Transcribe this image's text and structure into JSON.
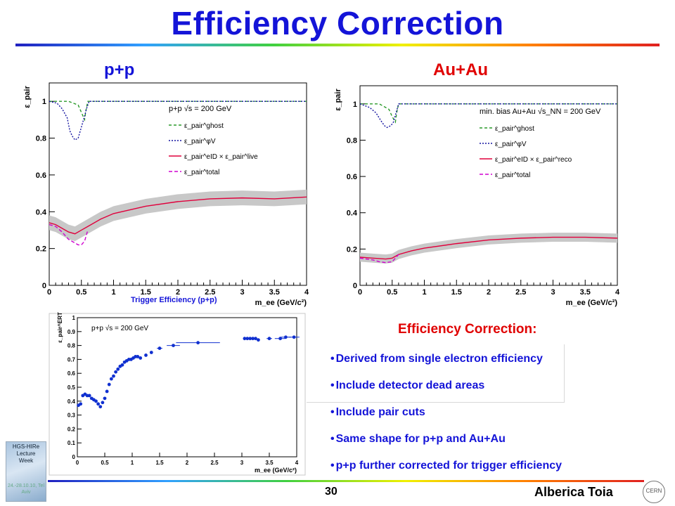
{
  "slide": {
    "title": "Efficiency Correction",
    "pp_label": "p+p",
    "auau_label": "Au+Au",
    "trigger_caption": "Trigger Efficiency (p+p)",
    "bullets_title": "Efficiency Correction:",
    "bullets": [
      "Derived from single electron efficiency",
      "Include detector dead areas",
      "Include pair cuts",
      "Same shape for p+p and Au+Au",
      "p+p further corrected for trigger efficiency"
    ],
    "logo_text": [
      "HGS-HIRe",
      "Lecture",
      "Week"
    ],
    "logo_date": "24.-28.10.10, Tel Aviv",
    "page_number": "30",
    "author": "Alberica Toia",
    "cern_text": "CERN"
  },
  "chart_data": [
    {
      "type": "line",
      "panel": "p+p",
      "ylabel": "ε_pair",
      "xlabel": "m_ee (GeV/c²)",
      "xlim": [
        0,
        4
      ],
      "ylim": [
        0,
        1.1
      ],
      "xticks": [
        "0",
        "0.5",
        "1",
        "1.5",
        "2",
        "2.5",
        "3",
        "3.5",
        "4"
      ],
      "yticks": [
        "0",
        "0.2",
        "0.4",
        "0.6",
        "0.8",
        "1"
      ],
      "annotation": "p+p √s = 200 GeV",
      "legend": [
        "ε_pair^ghost",
        "ε_pair^φV",
        "ε_pair^eID × ε_pair^live",
        "ε_pair^total"
      ],
      "band_halfwidth": 0.04,
      "series": [
        {
          "name": "ghost",
          "color": "#2a9a2a",
          "dash": "4,3",
          "x": [
            0,
            0.3,
            0.45,
            0.5,
            0.55,
            0.57,
            0.6,
            4
          ],
          "y": [
            1,
            1,
            0.98,
            0.94,
            0.9,
            0.95,
            1,
            1
          ]
        },
        {
          "name": "phiV",
          "color": "#1414a0",
          "dash": "2,2",
          "x": [
            0,
            0.12,
            0.2,
            0.28,
            0.32,
            0.36,
            0.4,
            0.45,
            0.5,
            0.55,
            0.58,
            0.62,
            0.7,
            4
          ],
          "y": [
            1,
            0.99,
            0.96,
            0.91,
            0.84,
            0.81,
            0.79,
            0.8,
            0.86,
            0.92,
            0.96,
            1,
            1,
            1
          ]
        },
        {
          "name": "eID x live",
          "color": "#e0003c",
          "dash": "",
          "x": [
            0,
            0.1,
            0.2,
            0.3,
            0.4,
            0.5,
            0.6,
            0.8,
            1.0,
            1.5,
            2.0,
            2.5,
            3.0,
            3.5,
            4.0
          ],
          "y": [
            0.34,
            0.33,
            0.31,
            0.29,
            0.28,
            0.3,
            0.32,
            0.36,
            0.39,
            0.43,
            0.455,
            0.47,
            0.475,
            0.47,
            0.48
          ]
        },
        {
          "name": "total",
          "color": "#d000d0",
          "dash": "5,3",
          "x": [
            0,
            0.1,
            0.2,
            0.3,
            0.4,
            0.45,
            0.5,
            0.55,
            0.6
          ],
          "y": [
            0.33,
            0.32,
            0.29,
            0.25,
            0.23,
            0.22,
            0.22,
            0.24,
            0.3
          ]
        }
      ]
    },
    {
      "type": "line",
      "panel": "Au+Au",
      "ylabel": "ε_pair",
      "xlabel": "m_ee (GeV/c²)",
      "xlim": [
        0,
        4
      ],
      "ylim": [
        0,
        1.1
      ],
      "xticks": [
        "0",
        "0.5",
        "1",
        "1.5",
        "2",
        "2.5",
        "3",
        "3.5",
        "4"
      ],
      "yticks": [
        "0",
        "0.2",
        "0.4",
        "0.6",
        "0.8",
        "1"
      ],
      "annotation": "min. bias Au+Au √s_NN = 200 GeV",
      "legend": [
        "ε_pair^ghost",
        "ε_pair^φV",
        "ε_pair^eID × ε_pair^reco",
        "ε_pair^total"
      ],
      "band_halfwidth": 0.025,
      "series": [
        {
          "name": "ghost",
          "color": "#2a9a2a",
          "dash": "4,3",
          "x": [
            0,
            0.3,
            0.45,
            0.5,
            0.55,
            0.57,
            0.6,
            4
          ],
          "y": [
            1,
            1,
            0.97,
            0.93,
            0.9,
            0.95,
            1,
            1
          ]
        },
        {
          "name": "phiV",
          "color": "#1414a0",
          "dash": "2,2",
          "x": [
            0,
            0.15,
            0.25,
            0.32,
            0.38,
            0.42,
            0.48,
            0.52,
            0.56,
            0.6,
            0.7,
            4
          ],
          "y": [
            1,
            0.98,
            0.95,
            0.91,
            0.88,
            0.87,
            0.88,
            0.9,
            0.95,
            1,
            1,
            1
          ]
        },
        {
          "name": "eID x reco",
          "color": "#e0003c",
          "dash": "",
          "x": [
            0,
            0.2,
            0.4,
            0.5,
            0.6,
            0.8,
            1.0,
            1.5,
            2.0,
            2.5,
            3.0,
            3.5,
            4.0
          ],
          "y": [
            0.155,
            0.15,
            0.145,
            0.15,
            0.17,
            0.19,
            0.205,
            0.23,
            0.25,
            0.26,
            0.265,
            0.265,
            0.26
          ]
        },
        {
          "name": "total",
          "color": "#d000d0",
          "dash": "5,3",
          "x": [
            0,
            0.1,
            0.2,
            0.3,
            0.4,
            0.5,
            0.55,
            0.6
          ],
          "y": [
            0.15,
            0.145,
            0.14,
            0.13,
            0.125,
            0.13,
            0.15,
            0.17
          ]
        }
      ]
    },
    {
      "type": "scatter",
      "panel": "trigger",
      "ylabel": "ε_pair^ERT",
      "xlabel": "m_ee (GeV/c²)",
      "xlim": [
        0,
        4
      ],
      "ylim": [
        0,
        1
      ],
      "xticks": [
        "0",
        "0.5",
        "1",
        "1.5",
        "2",
        "2.5",
        "3",
        "3.5",
        "4"
      ],
      "yticks": [
        "0",
        "0.1",
        "0.2",
        "0.3",
        "0.4",
        "0.5",
        "0.6",
        "0.7",
        "0.8",
        "0.9",
        "1"
      ],
      "annotation": "p+p √s = 200 GeV",
      "color": "#1030d0",
      "x": [
        0.02,
        0.06,
        0.1,
        0.14,
        0.18,
        0.22,
        0.26,
        0.3,
        0.34,
        0.38,
        0.42,
        0.46,
        0.5,
        0.54,
        0.58,
        0.62,
        0.66,
        0.7,
        0.74,
        0.78,
        0.82,
        0.86,
        0.9,
        0.94,
        0.98,
        1.02,
        1.06,
        1.1,
        1.15,
        1.25,
        1.35,
        1.5,
        1.75,
        2.2,
        3.05,
        3.1,
        3.15,
        3.2,
        3.25,
        3.3,
        3.5,
        3.7,
        3.8,
        3.95
      ],
      "y": [
        0.37,
        0.38,
        0.44,
        0.45,
        0.44,
        0.44,
        0.42,
        0.41,
        0.4,
        0.38,
        0.36,
        0.39,
        0.42,
        0.47,
        0.52,
        0.56,
        0.58,
        0.61,
        0.63,
        0.65,
        0.66,
        0.68,
        0.69,
        0.7,
        0.7,
        0.71,
        0.72,
        0.72,
        0.71,
        0.73,
        0.75,
        0.78,
        0.8,
        0.82,
        0.85,
        0.85,
        0.85,
        0.85,
        0.85,
        0.84,
        0.85,
        0.85,
        0.86,
        0.86
      ],
      "xerr": [
        0,
        0,
        0,
        0,
        0,
        0,
        0,
        0,
        0,
        0,
        0,
        0,
        0,
        0,
        0,
        0,
        0,
        0,
        0,
        0,
        0,
        0,
        0,
        0,
        0,
        0,
        0,
        0,
        0,
        0,
        0,
        0.05,
        0.12,
        0.4,
        0,
        0,
        0,
        0,
        0,
        0,
        0.05,
        0.1,
        0.1,
        0.1
      ]
    }
  ]
}
